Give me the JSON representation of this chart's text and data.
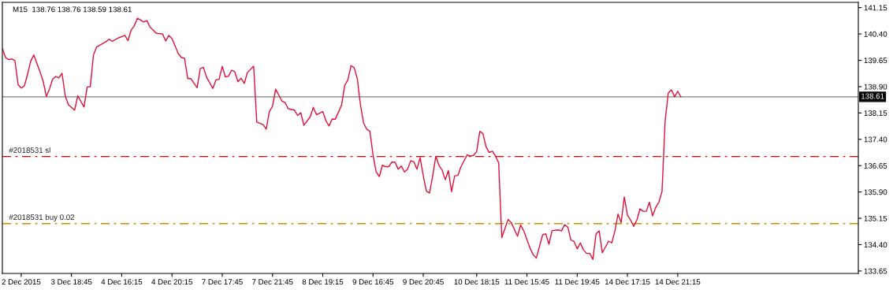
{
  "chart_data": {
    "type": "line",
    "title": "M15  138.76 138.76 138.59 138.61",
    "categories": [
      null,
      null,
      null,
      null,
      null,
      null,
      "2 Dec 2015",
      null,
      null,
      null,
      null,
      null,
      null,
      null,
      null,
      null,
      null,
      null,
      null,
      null,
      null,
      null,
      "3 Dec 18:45",
      null,
      null,
      null,
      null,
      null,
      null,
      null,
      null,
      null,
      null,
      null,
      null,
      null,
      null,
      null,
      "4 Dec 16:15",
      null,
      null,
      null,
      null,
      null,
      null,
      null,
      null,
      null,
      null,
      null,
      null,
      null,
      null,
      null,
      "4 Dec 20:15",
      null,
      null,
      null,
      null,
      null,
      null,
      null,
      null,
      null,
      null,
      null,
      null,
      null,
      null,
      null,
      "7 Dec 17:45",
      null,
      null,
      null,
      null,
      null,
      null,
      null,
      null,
      null,
      null,
      null,
      null,
      null,
      null,
      null,
      "7 Dec 21:45",
      null,
      null,
      null,
      null,
      null,
      null,
      null,
      null,
      null,
      null,
      null,
      null,
      null,
      null,
      null,
      "8 Dec 19:15",
      null,
      null,
      null,
      null,
      null,
      null,
      null,
      null,
      null,
      null,
      null,
      null,
      null,
      null,
      null,
      "9 Dec 16:45",
      null,
      null,
      null,
      null,
      null,
      null,
      null,
      null,
      null,
      null,
      null,
      null,
      null,
      null,
      null,
      "9 Dec 20:45",
      null,
      null,
      null,
      null,
      null,
      null,
      null,
      null,
      null,
      null,
      null,
      null,
      null,
      null,
      null,
      null,
      "10 Dec 18:15",
      null,
      null,
      null,
      null,
      null,
      null,
      null,
      null,
      null,
      null,
      null,
      null,
      null,
      null,
      null,
      "11 Dec 15:45",
      null,
      null,
      null,
      null,
      null,
      null,
      null,
      null,
      null,
      null,
      null,
      null,
      null,
      null,
      null,
      "11 Dec 19:45",
      null,
      null,
      null,
      null,
      null,
      null,
      null,
      null,
      null,
      null,
      null,
      null,
      null,
      null,
      null,
      "14 Dec 17:15",
      null,
      null,
      null,
      null,
      null,
      null,
      null,
      null,
      null,
      null,
      null,
      null,
      null,
      null,
      null,
      "14 Dec 21:15",
      null,
      null,
      null,
      null,
      null,
      null,
      null,
      null,
      null,
      null,
      null,
      null,
      null,
      null,
      null,
      null,
      null,
      null,
      null,
      null,
      null,
      null,
      null,
      null,
      null,
      null,
      null,
      null,
      null,
      null,
      null,
      null,
      null,
      null,
      null,
      null,
      null,
      null,
      null,
      null,
      null,
      null,
      null,
      null,
      null,
      null,
      null,
      null,
      null,
      null,
      null,
      null,
      null,
      null,
      null,
      null,
      null
    ],
    "series": [
      {
        "color": "#e0103a",
        "values": [
          139.99,
          139.73,
          139.67,
          139.69,
          139.64,
          138.96,
          138.86,
          138.92,
          139.24,
          139.62,
          139.8,
          null,
          139.32,
          139.05,
          138.62,
          138.83,
          139.11,
          139.19,
          139.15,
          139.28,
          138.64,
          138.39,
          null,
          138.23,
          138.64,
          null,
          138.32,
          138.89,
          138.9,
          139.8,
          140.03,
          null,
          null,
          140.18,
          140.25,
          140.19,
          null,
          140.29,
          null,
          140.36,
          140.21,
          140.51,
          140.63,
          140.85,
          null,
          140.74,
          140.78,
          140.6,
          null,
          140.42,
          null,
          140.4,
          140.2,
          140.36,
          140.27,
          null,
          139.84,
          139.73,
          139.71,
          139.13,
          139.13,
          null,
          138.87,
          139.41,
          139.45,
          139.17,
          null,
          138.85,
          139.09,
          139.11,
          139.48,
          139.18,
          139.2,
          139.37,
          139.32,
          139.04,
          139.14,
          138.99,
          139.3,
          null,
          139.48,
          137.89,
          null,
          137.82,
          137.69,
          138.19,
          138.34,
          138.83,
          null,
          138.49,
          138.44,
          138.27,
          null,
          138.23,
          138.08,
          138.16,
          137.8,
          null,
          138.04,
          138.31,
          138.1,
          null,
          138.19,
          137.93,
          137.78,
          137.98,
          137.97,
          null,
          138.38,
          138.94,
          139.09,
          139.5,
          139.44,
          139.13,
          138.38,
          137.86,
          137.69,
          137.63,
          136.96,
          136.47,
          136.34,
          136.66,
          136.62,
          136.62,
          136.75,
          136.75,
          136.55,
          136.64,
          136.47,
          136.55,
          136.79,
          136.76,
          136.55,
          136.88,
          136.36,
          135.92,
          135.87,
          136.36,
          136.92,
          136.66,
          136.52,
          136.25,
          136.51,
          135.91,
          136.36,
          136.37,
          136.62,
          null,
          136.96,
          136.92,
          136.94,
          137.05,
          137.63,
          137.56,
          137.18,
          137.03,
          137.06,
          136.92,
          136.73,
          134.6,
          134.86,
          135.12,
          135.03,
          null,
          134.64,
          134.96,
          134.79,
          null,
          134.3,
          134.11,
          134.02,
          null,
          134.68,
          134.71,
          134.41,
          134.8,
          null,
          134.82,
          134.79,
          134.97,
          134.9,
          134.53,
          134.49,
          134.28,
          134.45,
          134.25,
          134.15,
          134.15,
          133.98,
          134.71,
          134.79,
          134.17,
          null,
          134.5,
          134.45,
          134.79,
          135.27,
          135.03,
          135.76,
          135.24,
          135.1,
          134.92,
          135.1,
          135.42,
          135.35,
          135.35,
          135.61,
          135.22,
          135.46,
          135.61,
          135.91,
          137.93,
          138.72,
          138.81,
          138.61,
          138.77,
          138.61,
          null,
          null,
          null,
          null,
          null,
          null,
          null,
          null,
          null,
          null,
          null,
          null,
          null,
          null,
          null,
          null,
          null,
          null,
          null,
          null,
          null,
          null,
          null,
          null,
          null,
          null,
          null,
          null,
          null,
          null,
          null,
          null,
          null,
          null,
          null,
          null,
          null,
          null,
          null,
          null,
          null,
          null,
          null,
          null,
          null,
          null,
          null,
          null,
          null,
          null,
          null,
          null,
          null,
          null,
          null,
          null
        ]
      }
    ],
    "ylim": [
      133.58,
      141.3
    ],
    "yticks": [
      {
        "value": 141.15,
        "label": "141.15"
      },
      {
        "value": 140.4,
        "label": "140.40"
      },
      {
        "value": 139.65,
        "label": "139.65"
      },
      {
        "value": 138.9,
        "label": "138.90"
      },
      {
        "value": 138.15,
        "label": "138.15"
      },
      {
        "value": 137.4,
        "label": "137.40"
      },
      {
        "value": 136.65,
        "label": "136.65"
      },
      {
        "value": 135.9,
        "label": "135.90"
      },
      {
        "value": 135.15,
        "label": "135.15"
      },
      {
        "value": 134.4,
        "label": "134.40"
      },
      {
        "value": 133.65,
        "label": "133.65"
      }
    ],
    "ref_lines": [
      {
        "axis": "y",
        "value": 138.61,
        "label": "138.61",
        "color": "#808080",
        "line_style": "solid"
      },
      {
        "axis": "y",
        "value": 136.91,
        "label": "#2018531 sl",
        "color": "#e00000",
        "line_style": "dashdot"
      },
      {
        "axis": "y",
        "value": 135.0,
        "label": "#2018531 buy 0.02",
        "color": "#c89000",
        "line_style": "dashdot"
      }
    ],
    "grid": false,
    "legend": false,
    "marker": "none",
    "line_style": "solid"
  }
}
